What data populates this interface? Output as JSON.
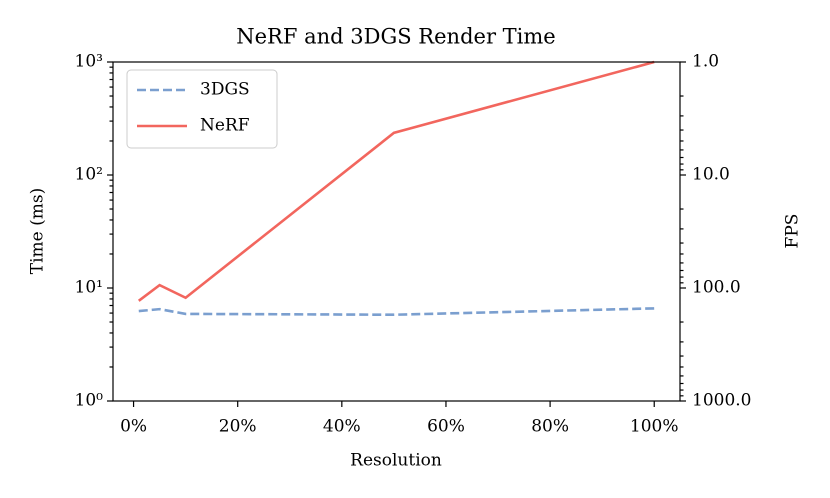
{
  "chart_data": {
    "type": "line",
    "title": "NeRF and 3DGS Render Time",
    "x_label": "Resolution",
    "y_label": "Time (ms)",
    "y2_label": "FPS",
    "x": [
      1,
      5,
      10,
      50,
      100
    ],
    "series": [
      {
        "name": "3DGS",
        "color": "#7b9fcf",
        "dash": true,
        "values": [
          6.25,
          6.5,
          5.9,
          5.8,
          6.6
        ]
      },
      {
        "name": "NeRF",
        "color": "#f2665e",
        "dash": false,
        "values": [
          7.7,
          10.6,
          8.2,
          236,
          1000
        ]
      }
    ],
    "xlim": [
      -3.95,
      104.95
    ],
    "xticks": [
      {
        "value": 0,
        "label": "0%"
      },
      {
        "value": 20,
        "label": "20%"
      },
      {
        "value": 40,
        "label": "40%"
      },
      {
        "value": 60,
        "label": "60%"
      },
      {
        "value": 80,
        "label": "80%"
      },
      {
        "value": 100,
        "label": "100%"
      }
    ],
    "ylim": [
      1,
      1000
    ],
    "yticks": [
      {
        "value": 1,
        "label": "10⁰"
      },
      {
        "value": 10,
        "label": "10¹"
      },
      {
        "value": 100,
        "label": "10²"
      },
      {
        "value": 1000,
        "label": "10³"
      }
    ],
    "y_log": true,
    "y2lim": [
      1000,
      1
    ],
    "y2ticks": [
      {
        "value": 1,
        "label": "1.0"
      },
      {
        "value": 10,
        "label": "10.0"
      },
      {
        "value": 100,
        "label": "100.0"
      },
      {
        "value": 1000,
        "label": "1000.0"
      }
    ],
    "y2_log": true,
    "legend": "upper left",
    "grid": false
  }
}
